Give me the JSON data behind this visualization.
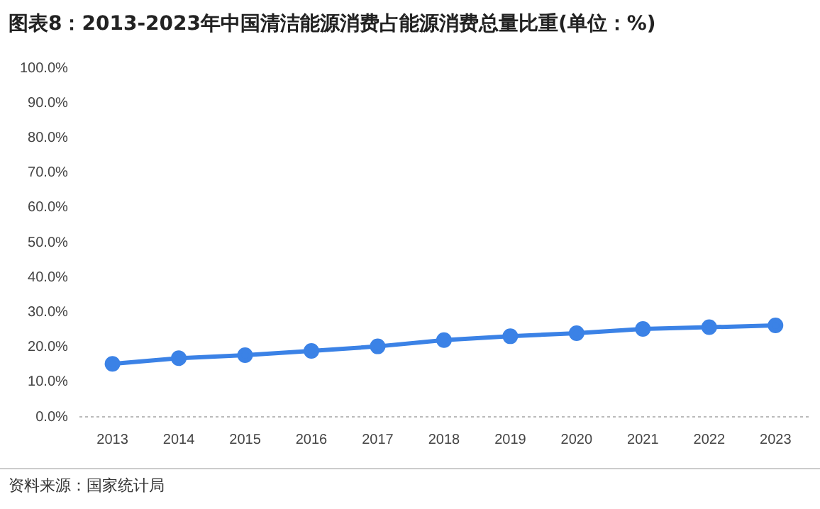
{
  "chart_data": {
    "type": "line",
    "title": "图表8：2013-2023年中国清洁能源消费占能源消费总量比重(单位：%)",
    "categories": [
      "2013",
      "2014",
      "2015",
      "2016",
      "2017",
      "2018",
      "2019",
      "2020",
      "2021",
      "2022",
      "2023"
    ],
    "series": [
      {
        "color": "#3b82e6",
        "values": [
          15.2,
          16.8,
          17.7,
          18.9,
          20.2,
          22.0,
          23.1,
          24.0,
          25.2,
          25.7,
          26.2
        ]
      }
    ],
    "ylim": [
      0,
      100
    ],
    "yticks": [
      {
        "value": 0,
        "label": "0.0%"
      },
      {
        "value": 10,
        "label": "10.0%"
      },
      {
        "value": 20,
        "label": "20.0%"
      },
      {
        "value": 30,
        "label": "30.0%"
      },
      {
        "value": 40,
        "label": "40.0%"
      },
      {
        "value": 50,
        "label": "50.0%"
      },
      {
        "value": 60,
        "label": "60.0%"
      },
      {
        "value": 70,
        "label": "70.0%"
      },
      {
        "value": 80,
        "label": "80.0%"
      },
      {
        "value": 90,
        "label": "90.0%"
      },
      {
        "value": 100,
        "label": "100.0%"
      }
    ],
    "grid": false,
    "legend": false,
    "marker": "circle",
    "line_style": "solid",
    "annotations": [
      "资料来源：国家统计局"
    ]
  }
}
